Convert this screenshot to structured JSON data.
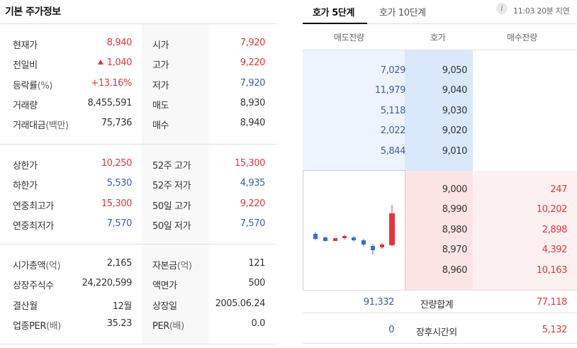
{
  "left": {
    "title": "기본 주가정보",
    "sections": [
      {
        "rows": [
          {
            "l1": "현재가",
            "l1s": "",
            "v1": "8,940",
            "c1": "red",
            "l2": "시가",
            "l2s": "",
            "v2": "7,920",
            "c2": "red"
          },
          {
            "l1": "전일비",
            "l1s": "",
            "v1": "1,040",
            "c1": "red",
            "tri": true,
            "l2": "고가",
            "l2s": "",
            "v2": "9,220",
            "c2": "red"
          },
          {
            "l1": "등락률",
            "l1s": "(%)",
            "v1": "+13.16%",
            "c1": "red",
            "l2": "저가",
            "l2s": "",
            "v2": "7,920",
            "c2": "blue"
          },
          {
            "l1": "거래량",
            "l1s": "",
            "v1": "8,455,591",
            "c1": "black",
            "l2": "매도",
            "l2s": "",
            "v2": "8,930",
            "c2": "black"
          },
          {
            "l1": "거래대금",
            "l1s": "(백만)",
            "v1": "75,736",
            "c1": "black",
            "l2": "매수",
            "l2s": "",
            "v2": "8,940",
            "c2": "black"
          }
        ]
      },
      {
        "rows": [
          {
            "l1": "상한가",
            "l1s": "",
            "v1": "10,250",
            "c1": "red",
            "l2": "52주 고가",
            "l2s": "",
            "v2": "15,300",
            "c2": "red"
          },
          {
            "l1": "하한가",
            "l1s": "",
            "v1": "5,530",
            "c1": "blue",
            "l2": "52주 저가",
            "l2s": "",
            "v2": "4,935",
            "c2": "blue"
          },
          {
            "l1": "연중최고가",
            "l1s": "",
            "v1": "15,300",
            "c1": "red",
            "l2": "50일 고가",
            "l2s": "",
            "v2": "9,220",
            "c2": "red"
          },
          {
            "l1": "연중최저가",
            "l1s": "",
            "v1": "7,570",
            "c1": "blue",
            "l2": "50일 저가",
            "l2s": "",
            "v2": "7,570",
            "c2": "blue"
          }
        ]
      },
      {
        "rows": [
          {
            "l1": "시가총액",
            "l1s": "(억)",
            "v1": "2,165",
            "c1": "black",
            "l2": "자본금",
            "l2s": "(억)",
            "v2": "121",
            "c2": "black"
          },
          {
            "l1": "상장주식수",
            "l1s": "",
            "v1": "24,220,599",
            "c1": "black",
            "l2": "액면가",
            "l2s": "",
            "v2": "500",
            "c2": "black"
          },
          {
            "l1": "결산월",
            "l1s": "",
            "v1": "12월",
            "c1": "black",
            "l2": "상장일",
            "l2s": "",
            "v2": "2005.06.24",
            "c2": "black"
          },
          {
            "l1": "업종PER",
            "l1s": "(배)",
            "v1": "35.23",
            "c1": "black",
            "l2": "PER",
            "l2s": "(배)",
            "v2": "0.0",
            "c2": "black"
          }
        ]
      }
    ]
  },
  "right": {
    "tabs": [
      "호가 5단계",
      "호가 10단계"
    ],
    "info_icon": "i",
    "delay_text": "11:03 20분 지연",
    "headers": [
      "매도잔량",
      "호가",
      "매수잔량"
    ],
    "asks": [
      {
        "qty": "7,029",
        "price": "9,050"
      },
      {
        "qty": "11,979",
        "price": "9,040"
      },
      {
        "qty": "5,118",
        "price": "9,030"
      },
      {
        "qty": "2,022",
        "price": "9,020"
      },
      {
        "qty": "5,844",
        "price": "9,010"
      }
    ],
    "bids": [
      {
        "price": "9,000",
        "qty": "247"
      },
      {
        "price": "8,990",
        "qty": "10,202"
      },
      {
        "price": "8,980",
        "qty": "2,898"
      },
      {
        "price": "8,970",
        "qty": "4,392"
      },
      {
        "price": "8,960",
        "qty": "10,163"
      }
    ],
    "total": {
      "ask_qty": "91,332",
      "label": "잔량합계",
      "bid_qty": "77,118"
    },
    "after_hours": {
      "ask_qty": "0",
      "label": "장후시간외",
      "bid_qty": "5,132"
    },
    "colors": {
      "up": "#e0363b",
      "down": "#3b5ea8"
    }
  }
}
